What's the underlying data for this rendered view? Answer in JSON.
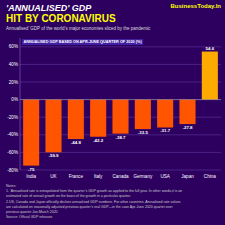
{
  "chart_data": {
    "type": "bar",
    "title": [
      "'ANNUALISED' GDP",
      "HIT BY CORONAVIRUS"
    ],
    "subtitle": "Annualised’ GDP of the world’s major economies sliced by the pandemic",
    "annotations": [
      "ANNUALISED GDP BASED ON APR-JUNE QUARTER OF 2020 (%)",
      "BusinessToday.In"
    ],
    "notes": [
      "Notes:",
      "1. ‘Annualised rate is extrapolated from the quarter’s GDP growth as applied to the full year. In other words,it is an",
      "estimated rate of annual growth on the basis of the growth in a particular quarter.",
      "2.US, Canada and Japan officially declare annualised GDP numbers. For other countries, Annualised rate values",
      "are calculated on seasonally adjusted previous quarter’s real GDP—in the case Apr-June 2020 quarter over",
      "previous quarter Jan-March 2020",
      "Source: Official GDP releases"
    ],
    "categories": [
      "India",
      "UK",
      "France",
      "Italy",
      "Canada",
      "Germany",
      "USA",
      "Japan",
      "China"
    ],
    "values": [
      -75,
      -59.9,
      -44.8,
      -42.2,
      -38.7,
      -33.5,
      -31.7,
      -27.8,
      54.6
    ],
    "colors": [
      "#FF5500",
      "#FF5500",
      "#FF5500",
      "#FF5500",
      "#FF5500",
      "#FF5500",
      "#FF5500",
      "#FF5500",
      "#FFAA00"
    ],
    "ylim": [
      -80,
      70
    ],
    "yticks": [
      {
        "value": -80,
        "label": "-80%"
      },
      {
        "value": -60,
        "label": "-60%"
      },
      {
        "value": -40,
        "label": "-40%"
      },
      {
        "value": -20,
        "label": "-20%"
      },
      {
        "value": 0,
        "label": "0%"
      },
      {
        "value": 20,
        "label": "20%"
      },
      {
        "value": 40,
        "label": "40%"
      },
      {
        "value": 60,
        "label": "60%"
      }
    ],
    "grid": true,
    "data_labels": true
  }
}
